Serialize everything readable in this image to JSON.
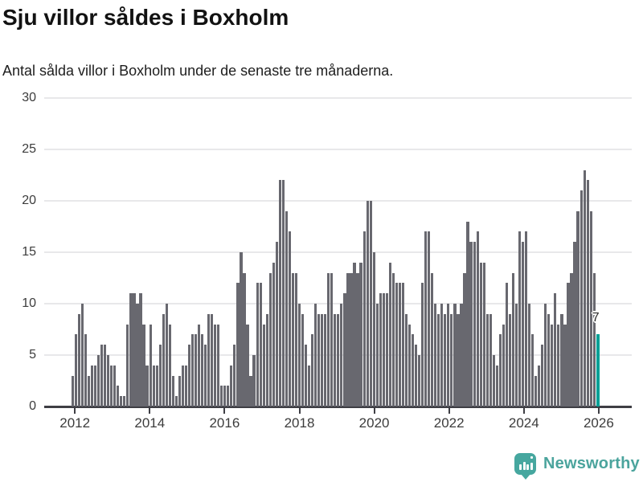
{
  "header": {
    "title": "Sju villor såldes i Boxholm",
    "subtitle": "Antal sålda villor i Boxholm under de senaste tre månaderna."
  },
  "chart_data": {
    "type": "bar",
    "title": "Sju villor såldes i Boxholm",
    "subtitle": "Antal sålda villor i Boxholm under de senaste tre månaderna.",
    "xlabel": "",
    "ylabel": "",
    "ylim": [
      0,
      30
    ],
    "y_ticks": [
      0,
      5,
      10,
      15,
      20,
      25,
      30
    ],
    "x_tick_labels": [
      "2012",
      "2014",
      "2016",
      "2018",
      "2020",
      "2022",
      "2024",
      "2026"
    ],
    "x_start_year": 2012,
    "grid": true,
    "legend": false,
    "bar_color": "#68686f",
    "highlight_color": "#00a096",
    "values": [
      3,
      7,
      9,
      10,
      7,
      3,
      4,
      4,
      5,
      6,
      6,
      5,
      4,
      4,
      2,
      1,
      1,
      8,
      11,
      11,
      10,
      11,
      8,
      4,
      8,
      4,
      4,
      6,
      9,
      10,
      8,
      3,
      1,
      3,
      4,
      4,
      6,
      7,
      7,
      8,
      7,
      6,
      9,
      9,
      8,
      8,
      2,
      2,
      2,
      4,
      6,
      12,
      15,
      13,
      8,
      3,
      5,
      12,
      12,
      8,
      9,
      13,
      14,
      16,
      22,
      22,
      19,
      17,
      13,
      13,
      10,
      9,
      6,
      4,
      7,
      10,
      9,
      9,
      9,
      13,
      13,
      9,
      9,
      10,
      11,
      13,
      13,
      14,
      13,
      14,
      17,
      20,
      20,
      15,
      10,
      11,
      11,
      11,
      14,
      13,
      12,
      12,
      12,
      9,
      8,
      7,
      6,
      5,
      12,
      17,
      17,
      13,
      10,
      9,
      10,
      9,
      10,
      9,
      10,
      9,
      10,
      13,
      18,
      16,
      16,
      17,
      14,
      14,
      9,
      9,
      5,
      4,
      7,
      8,
      12,
      9,
      13,
      10,
      17,
      16,
      17,
      10,
      7,
      3,
      4,
      6,
      10,
      9,
      8,
      11,
      8,
      9,
      8,
      12,
      13,
      16,
      19,
      21,
      23,
      22,
      19,
      13,
      7
    ],
    "highlight": {
      "position": "last",
      "value": 7,
      "label": "7"
    }
  },
  "annotation": {
    "label": "7"
  },
  "footer": {
    "brand": "Newsworthy"
  },
  "colors": {
    "bar": "#68686f",
    "accent": "#00a096",
    "brand": "#46a79f",
    "brand_text": "#4ba49d",
    "axis": "#3e3e44",
    "grid": "#e8e8ea",
    "tick_text": "#3c3c3c"
  }
}
